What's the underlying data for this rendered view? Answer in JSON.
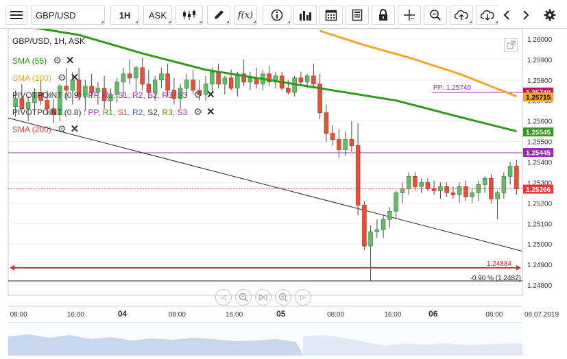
{
  "toolbar": {
    "menu_icon": "hamburger-menu-icon",
    "symbol": "GBP/USD",
    "timeframe": "1H",
    "price_side": "ASK"
  },
  "chart_header": {
    "title": "GBP/USD, 1H, ASK"
  },
  "indicators": {
    "sma55": {
      "label": "SMA (55)",
      "color": "#2e9a16"
    },
    "sma100": {
      "label": "SMA (100)",
      "color": "#f2a726"
    },
    "pivot1": {
      "label": "PIVOTPOINT (0.9)",
      "sep": ":",
      "items": [
        "PP,",
        "R1,",
        "S1,",
        "R2,",
        "S2,",
        "R3,",
        "S3"
      ]
    },
    "pivot2": {
      "label": "PIVOTPOINT (0.8)",
      "sep": ":",
      "items": [
        "PP,",
        "R1,",
        "S1,",
        "R2,",
        "S2,",
        "R3,",
        "S3"
      ]
    },
    "sma200": {
      "label": "SMA (200)",
      "color": "#e53935"
    }
  },
  "price_axis": {
    "ticks": [
      "1.26000",
      "1.25900",
      "1.25800",
      "1.25700",
      "1.25600",
      "1.25500",
      "1.25400",
      "1.25300",
      "1.25200",
      "1.25100",
      "1.25000",
      "1.24900",
      "1.24800"
    ],
    "markers": [
      {
        "label": "1.25740",
        "color": "#c2185b",
        "text_color": "#ffffff"
      },
      {
        "label": "1.25715",
        "color": "#f2a726",
        "text_color": "#000000"
      },
      {
        "label": "1.25545",
        "color": "#2e9a16",
        "text_color": "#ffffff"
      },
      {
        "label": "1.25445",
        "color": "#9c27b0",
        "text_color": "#ffffff"
      },
      {
        "label": "1.25266",
        "color": "#e53935",
        "text_color": "#ffffff"
      }
    ]
  },
  "annotations": {
    "pp_label": "PP: 1.25740",
    "hline_price": "1.24884",
    "change_text": "-0.90 % (1.2482)"
  },
  "time_axis": {
    "labels": [
      "08:00",
      "16:00",
      "04",
      "08:00",
      "16:00",
      "05",
      "08:00",
      "16:00",
      "06",
      "08:00",
      "08.07.2019"
    ],
    "bold": [
      false,
      false,
      true,
      false,
      false,
      true,
      false,
      false,
      true,
      false,
      false
    ]
  },
  "colors": {
    "up_candle": "#66bb6a",
    "down_candle": "#e0533d",
    "sma55": "#2e9a16",
    "sma100": "#f2a726",
    "pivot_line": "#9c27b0",
    "hline": "#d32f2f"
  },
  "chart_data": {
    "type": "candlestick",
    "title": "GBP/USD, 1H, ASK",
    "ylim": [
      1.2475,
      1.2605
    ],
    "x_labels": [
      "08:00",
      "16:00",
      "04",
      "08:00",
      "16:00",
      "05",
      "08:00",
      "16:00",
      "06",
      "08:00",
      "08.07.2019"
    ],
    "candles": [
      {
        "o": 1.2567,
        "h": 1.2575,
        "l": 1.2562,
        "c": 1.2571
      },
      {
        "o": 1.2571,
        "h": 1.2578,
        "l": 1.2565,
        "c": 1.2566
      },
      {
        "o": 1.2566,
        "h": 1.2572,
        "l": 1.256,
        "c": 1.2569
      },
      {
        "o": 1.2569,
        "h": 1.2576,
        "l": 1.2563,
        "c": 1.2574
      },
      {
        "o": 1.2574,
        "h": 1.258,
        "l": 1.2568,
        "c": 1.257
      },
      {
        "o": 1.257,
        "h": 1.2575,
        "l": 1.2563,
        "c": 1.2566
      },
      {
        "o": 1.2566,
        "h": 1.2571,
        "l": 1.2559,
        "c": 1.2563
      },
      {
        "o": 1.2563,
        "h": 1.2578,
        "l": 1.256,
        "c": 1.2577
      },
      {
        "o": 1.2577,
        "h": 1.2586,
        "l": 1.257,
        "c": 1.2575
      },
      {
        "o": 1.2575,
        "h": 1.2584,
        "l": 1.2568,
        "c": 1.258
      },
      {
        "o": 1.258,
        "h": 1.2586,
        "l": 1.257,
        "c": 1.2572
      },
      {
        "o": 1.2572,
        "h": 1.258,
        "l": 1.2565,
        "c": 1.2577
      },
      {
        "o": 1.2577,
        "h": 1.2583,
        "l": 1.2571,
        "c": 1.2574
      },
      {
        "o": 1.2574,
        "h": 1.2579,
        "l": 1.2568,
        "c": 1.2576
      },
      {
        "o": 1.2576,
        "h": 1.2582,
        "l": 1.2566,
        "c": 1.257
      },
      {
        "o": 1.257,
        "h": 1.2576,
        "l": 1.2565,
        "c": 1.2573
      },
      {
        "o": 1.2573,
        "h": 1.2581,
        "l": 1.2569,
        "c": 1.2579
      },
      {
        "o": 1.2579,
        "h": 1.2586,
        "l": 1.2572,
        "c": 1.2583
      },
      {
        "o": 1.2583,
        "h": 1.259,
        "l": 1.2578,
        "c": 1.2581
      },
      {
        "o": 1.2581,
        "h": 1.2587,
        "l": 1.2574,
        "c": 1.2586
      },
      {
        "o": 1.2586,
        "h": 1.2591,
        "l": 1.2575,
        "c": 1.2578
      },
      {
        "o": 1.2578,
        "h": 1.2585,
        "l": 1.2571,
        "c": 1.2574
      },
      {
        "o": 1.2574,
        "h": 1.2582,
        "l": 1.257,
        "c": 1.258
      },
      {
        "o": 1.258,
        "h": 1.2586,
        "l": 1.2576,
        "c": 1.2583
      },
      {
        "o": 1.2583,
        "h": 1.2588,
        "l": 1.2572,
        "c": 1.2575
      },
      {
        "o": 1.2575,
        "h": 1.2581,
        "l": 1.2568,
        "c": 1.2571
      },
      {
        "o": 1.2571,
        "h": 1.2578,
        "l": 1.2566,
        "c": 1.2576
      },
      {
        "o": 1.2576,
        "h": 1.2583,
        "l": 1.2572,
        "c": 1.258
      },
      {
        "o": 1.258,
        "h": 1.2585,
        "l": 1.2573,
        "c": 1.2575
      },
      {
        "o": 1.2575,
        "h": 1.258,
        "l": 1.257,
        "c": 1.2573
      },
      {
        "o": 1.2573,
        "h": 1.2582,
        "l": 1.257,
        "c": 1.2578
      },
      {
        "o": 1.2578,
        "h": 1.2586,
        "l": 1.2574,
        "c": 1.2584
      },
      {
        "o": 1.2584,
        "h": 1.2588,
        "l": 1.2576,
        "c": 1.2578
      },
      {
        "o": 1.2578,
        "h": 1.2582,
        "l": 1.2573,
        "c": 1.2581
      },
      {
        "o": 1.2581,
        "h": 1.2585,
        "l": 1.2575,
        "c": 1.2576
      },
      {
        "o": 1.2576,
        "h": 1.2584,
        "l": 1.2572,
        "c": 1.2583
      },
      {
        "o": 1.2583,
        "h": 1.259,
        "l": 1.2577,
        "c": 1.2579
      },
      {
        "o": 1.2579,
        "h": 1.2584,
        "l": 1.2575,
        "c": 1.2581
      },
      {
        "o": 1.2581,
        "h": 1.2586,
        "l": 1.2576,
        "c": 1.2578
      },
      {
        "o": 1.2578,
        "h": 1.2585,
        "l": 1.2575,
        "c": 1.2583
      },
      {
        "o": 1.2583,
        "h": 1.2587,
        "l": 1.2577,
        "c": 1.2579
      },
      {
        "o": 1.2579,
        "h": 1.2584,
        "l": 1.2576,
        "c": 1.2582
      },
      {
        "o": 1.2582,
        "h": 1.2584,
        "l": 1.2575,
        "c": 1.2576
      },
      {
        "o": 1.2576,
        "h": 1.258,
        "l": 1.2573,
        "c": 1.2574
      },
      {
        "o": 1.2574,
        "h": 1.2582,
        "l": 1.2572,
        "c": 1.2581
      },
      {
        "o": 1.2581,
        "h": 1.2584,
        "l": 1.2577,
        "c": 1.2579
      },
      {
        "o": 1.2579,
        "h": 1.2583,
        "l": 1.2576,
        "c": 1.2582
      },
      {
        "o": 1.2582,
        "h": 1.2588,
        "l": 1.2577,
        "c": 1.2578
      },
      {
        "o": 1.2578,
        "h": 1.2583,
        "l": 1.2561,
        "c": 1.2564
      },
      {
        "o": 1.2564,
        "h": 1.2568,
        "l": 1.255,
        "c": 1.2554
      },
      {
        "o": 1.2554,
        "h": 1.2558,
        "l": 1.2548,
        "c": 1.2551
      },
      {
        "o": 1.2551,
        "h": 1.2556,
        "l": 1.2542,
        "c": 1.2546
      },
      {
        "o": 1.2546,
        "h": 1.2555,
        "l": 1.2543,
        "c": 1.2551
      },
      {
        "o": 1.2551,
        "h": 1.256,
        "l": 1.2545,
        "c": 1.2548
      },
      {
        "o": 1.2548,
        "h": 1.2559,
        "l": 1.2514,
        "c": 1.2519
      },
      {
        "o": 1.2519,
        "h": 1.2521,
        "l": 1.2497,
        "c": 1.2499
      },
      {
        "o": 1.2499,
        "h": 1.2509,
        "l": 1.2482,
        "c": 1.2506
      },
      {
        "o": 1.2506,
        "h": 1.2512,
        "l": 1.2503,
        "c": 1.2507
      },
      {
        "o": 1.2507,
        "h": 1.2514,
        "l": 1.2503,
        "c": 1.2512
      },
      {
        "o": 1.2512,
        "h": 1.2518,
        "l": 1.2508,
        "c": 1.2516
      },
      {
        "o": 1.2516,
        "h": 1.2526,
        "l": 1.2512,
        "c": 1.2525
      },
      {
        "o": 1.2525,
        "h": 1.253,
        "l": 1.252,
        "c": 1.2527
      },
      {
        "o": 1.2527,
        "h": 1.2535,
        "l": 1.2524,
        "c": 1.2533
      },
      {
        "o": 1.2533,
        "h": 1.2535,
        "l": 1.2526,
        "c": 1.2528
      },
      {
        "o": 1.2528,
        "h": 1.2532,
        "l": 1.2525,
        "c": 1.253
      },
      {
        "o": 1.253,
        "h": 1.2532,
        "l": 1.2526,
        "c": 1.2527
      },
      {
        "o": 1.2527,
        "h": 1.2531,
        "l": 1.2524,
        "c": 1.2526
      },
      {
        "o": 1.2526,
        "h": 1.253,
        "l": 1.2522,
        "c": 1.2528
      },
      {
        "o": 1.2528,
        "h": 1.253,
        "l": 1.2523,
        "c": 1.2525
      },
      {
        "o": 1.2525,
        "h": 1.2528,
        "l": 1.2522,
        "c": 1.2524
      },
      {
        "o": 1.2524,
        "h": 1.253,
        "l": 1.252,
        "c": 1.2528
      },
      {
        "o": 1.2528,
        "h": 1.2531,
        "l": 1.2521,
        "c": 1.2523
      },
      {
        "o": 1.2523,
        "h": 1.2527,
        "l": 1.252,
        "c": 1.2525
      },
      {
        "o": 1.2525,
        "h": 1.2531,
        "l": 1.2521,
        "c": 1.2529
      },
      {
        "o": 1.2529,
        "h": 1.2533,
        "l": 1.2525,
        "c": 1.2532
      },
      {
        "o": 1.2532,
        "h": 1.2534,
        "l": 1.252,
        "c": 1.2522
      },
      {
        "o": 1.2522,
        "h": 1.2526,
        "l": 1.2512,
        "c": 1.2525
      },
      {
        "o": 1.2525,
        "h": 1.2535,
        "l": 1.2522,
        "c": 1.2533
      },
      {
        "o": 1.2533,
        "h": 1.254,
        "l": 1.2529,
        "c": 1.2538
      },
      {
        "o": 1.2538,
        "h": 1.2541,
        "l": 1.2524,
        "c": 1.2527
      }
    ],
    "series": [
      {
        "name": "SMA (55)",
        "x": [
          0,
          10,
          20,
          30,
          40,
          50,
          60,
          70,
          79
        ],
        "values": [
          1.2607,
          1.2602,
          1.2593,
          1.2585,
          1.258,
          1.2575,
          1.257,
          1.2562,
          1.2555
        ]
      },
      {
        "name": "SMA (100)",
        "x": [
          48,
          55,
          62,
          70,
          79
        ],
        "values": [
          1.2604,
          1.2597,
          1.2591,
          1.2583,
          1.2572
        ]
      }
    ],
    "levels": [
      1.2574,
      1.25445,
      1.24884
    ]
  }
}
